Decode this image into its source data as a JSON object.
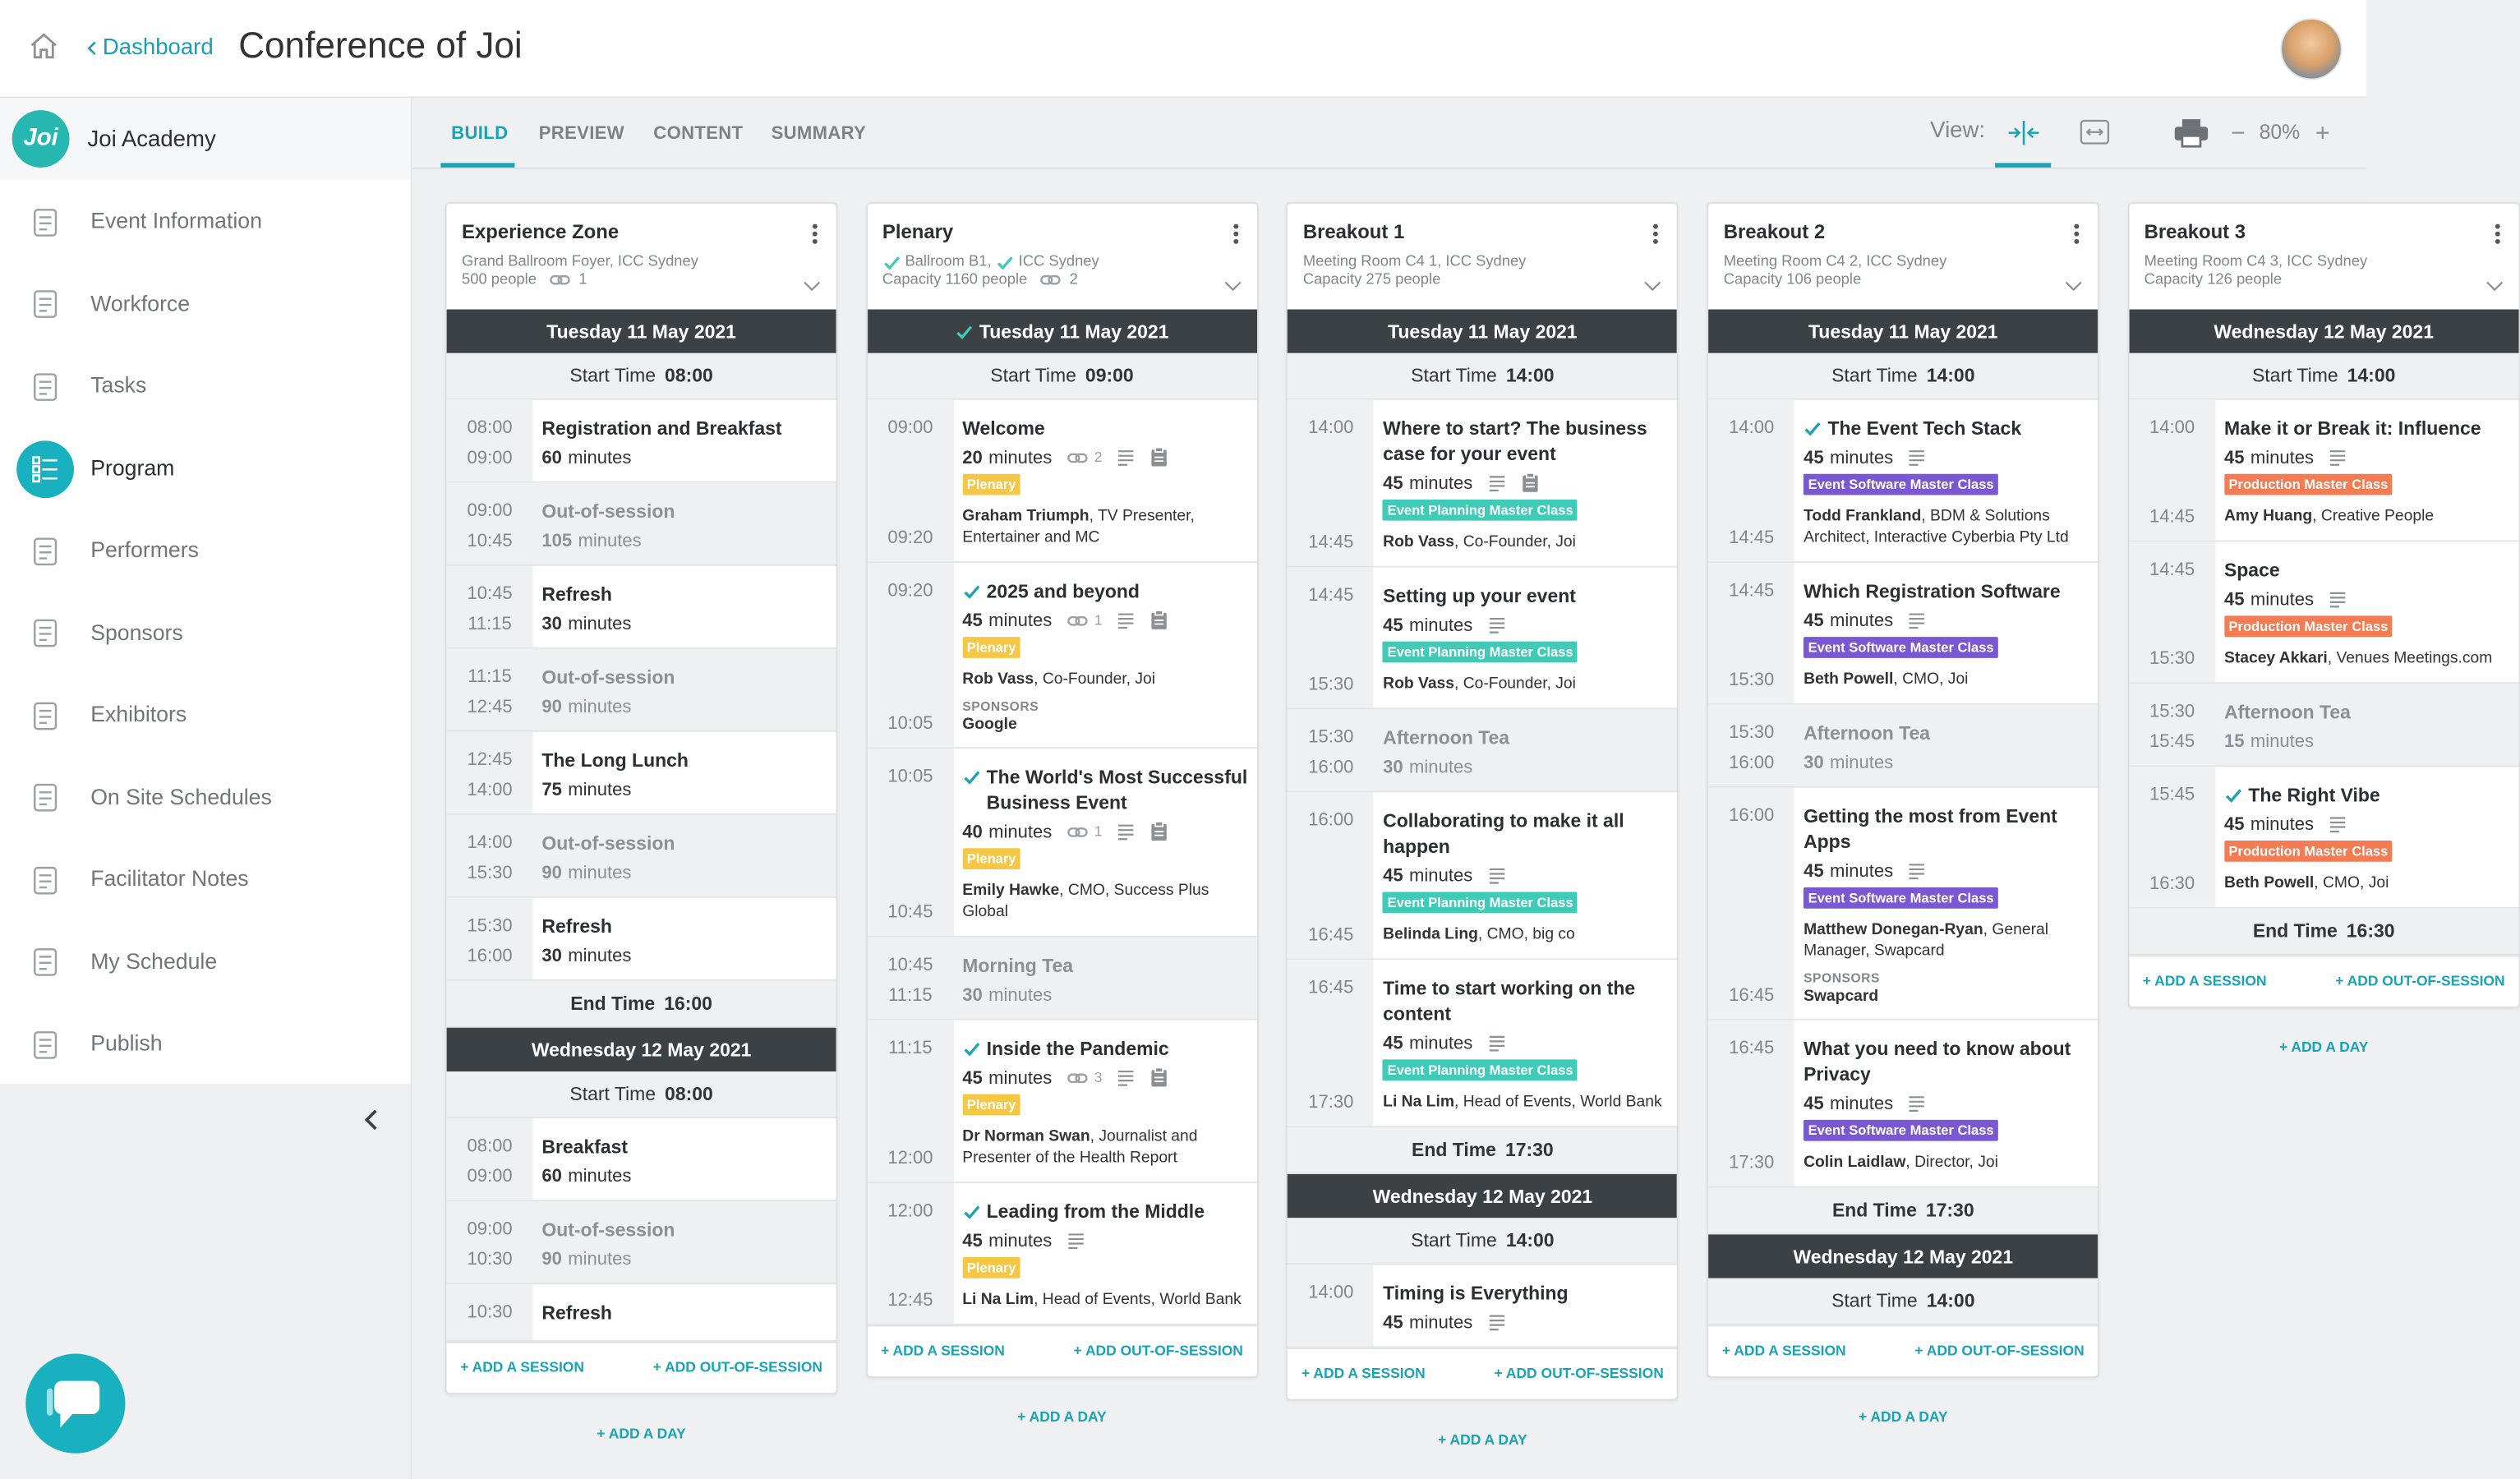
{
  "header": {
    "back": "Dashboard",
    "title": "Conference of Joi"
  },
  "sidebar": {
    "logo": "Joi",
    "org": "Joi Academy",
    "active": 3,
    "nav": [
      "Event Information",
      "Workforce",
      "Tasks",
      "Program",
      "Performers",
      "Sponsors",
      "Exhibitors",
      "On Site Schedules",
      "Facilitator Notes",
      "My Schedule",
      "Publish"
    ]
  },
  "tabs": {
    "items": [
      "BUILD",
      "PREVIEW",
      "CONTENT",
      "SUMMARY"
    ],
    "active": 0,
    "view_label": "View:",
    "zoom": "80%"
  },
  "labels": {
    "start": "Start Time",
    "end": "End Time",
    "minutes": "minutes",
    "sponsors": "SPONSORS",
    "add_session": "+ ADD A SESSION",
    "add_out": "+ ADD OUT-OF-SESSION",
    "add_day": "+ ADD A DAY"
  },
  "tags": {
    "plenary": {
      "label": "Plenary",
      "color": "#f6c744"
    },
    "epmc": {
      "label": "Event Planning Master Class",
      "color": "#3fcbb8"
    },
    "esmc": {
      "label": "Event Software Master Class",
      "color": "#7a58d4"
    },
    "pmc": {
      "label": "Production Master Class",
      "color": "#f47b52"
    }
  },
  "columns": [
    {
      "name": "Experience Zone",
      "location": [
        "Grand Ballroom Foyer, ICC Sydney"
      ],
      "location_checked": false,
      "capacity": "500 people",
      "links": 1,
      "days": [
        {
          "date": "Tuesday 11 May 2021",
          "checked": false,
          "start": "08:00",
          "end": "16:00",
          "sessions": [
            {
              "start": "08:00",
              "end": "09:00",
              "title": "Registration and Breakfast",
              "duration": 60
            },
            {
              "start": "09:00",
              "end": "10:45",
              "title": "Out-of-session",
              "duration": 105,
              "out": true
            },
            {
              "start": "10:45",
              "end": "11:15",
              "title": "Refresh",
              "duration": 30
            },
            {
              "start": "11:15",
              "end": "12:45",
              "title": "Out-of-session",
              "duration": 90,
              "out": true
            },
            {
              "start": "12:45",
              "end": "14:00",
              "title": "The Long Lunch",
              "duration": 75
            },
            {
              "start": "14:00",
              "end": "15:30",
              "title": "Out-of-session",
              "duration": 90,
              "out": true
            },
            {
              "start": "15:30",
              "end": "16:00",
              "title": "Refresh",
              "duration": 30
            }
          ]
        },
        {
          "date": "Wednesday 12 May 2021",
          "checked": false,
          "start": "08:00",
          "sessions": [
            {
              "start": "08:00",
              "end": "09:00",
              "title": "Breakfast",
              "duration": 60
            },
            {
              "start": "09:00",
              "end": "10:30",
              "title": "Out-of-session",
              "duration": 90,
              "out": true
            },
            {
              "start": "10:30",
              "title": "Refresh"
            }
          ]
        }
      ]
    },
    {
      "name": "Plenary",
      "location": [
        "Ballroom B1,",
        "ICC Sydney"
      ],
      "location_checked": true,
      "capacity": "Capacity 1160 people",
      "links": 2,
      "days": [
        {
          "date": "Tuesday 11 May 2021",
          "checked": true,
          "start": "09:00",
          "sessions": [
            {
              "start": "09:00",
              "end": "09:20",
              "title": "Welcome",
              "duration": 20,
              "links": 2,
              "notes": true,
              "clip": true,
              "tag": "plenary",
              "people": [
                {
                  "name": "Graham Triumph",
                  "role": ", TV Presenter, Entertainer and MC"
                }
              ]
            },
            {
              "start": "09:20",
              "end": "10:05",
              "title": "2025 and beyond",
              "checked": true,
              "duration": 45,
              "links": 1,
              "notes": true,
              "clip": true,
              "tag": "plenary",
              "people": [
                {
                  "name": "Rob Vass",
                  "role": ", Co-Founder, Joi"
                }
              ],
              "sponsor": "Google"
            },
            {
              "start": "10:05",
              "end": "10:45",
              "title": "The World's Most Successful Business Event",
              "checked": true,
              "duration": 40,
              "links": 1,
              "notes": true,
              "clip": true,
              "tag": "plenary",
              "people": [
                {
                  "name": "Emily Hawke",
                  "role": ", CMO, Success Plus Global"
                }
              ]
            },
            {
              "start": "10:45",
              "end": "11:15",
              "title": "Morning Tea",
              "duration": 30,
              "out": true
            },
            {
              "start": "11:15",
              "end": "12:00",
              "title": "Inside the Pandemic",
              "checked": true,
              "duration": 45,
              "links": 3,
              "notes": true,
              "clip": true,
              "tag": "plenary",
              "people": [
                {
                  "name": "Dr Norman Swan",
                  "role": ", Journalist and Presenter of the Health Report"
                }
              ]
            },
            {
              "start": "12:00",
              "end": "12:45",
              "title": "Leading from the Middle",
              "checked": true,
              "duration": 45,
              "notes": true,
              "tag": "plenary",
              "people": [
                {
                  "name": "Li Na Lim",
                  "role": ", Head of Events, World Bank"
                }
              ]
            }
          ]
        }
      ]
    },
    {
      "name": "Breakout 1",
      "location": [
        "Meeting Room C4 1, ICC Sydney"
      ],
      "location_checked": false,
      "capacity": "Capacity 275 people",
      "days": [
        {
          "date": "Tuesday 11 May 2021",
          "checked": false,
          "start": "14:00",
          "end": "17:30",
          "sessions": [
            {
              "start": "14:00",
              "end": "14:45",
              "title": "Where to start? The business case for your event",
              "duration": 45,
              "notes": true,
              "clip": true,
              "tag": "epmc",
              "people": [
                {
                  "name": "Rob Vass",
                  "role": ", Co-Founder, Joi"
                }
              ]
            },
            {
              "start": "14:45",
              "end": "15:30",
              "title": "Setting up your event",
              "duration": 45,
              "notes": true,
              "tag": "epmc",
              "people": [
                {
                  "name": "Rob Vass",
                  "role": ", Co-Founder, Joi"
                }
              ]
            },
            {
              "start": "15:30",
              "end": "16:00",
              "title": "Afternoon Tea",
              "duration": 30,
              "out": true
            },
            {
              "start": "16:00",
              "end": "16:45",
              "title": "Collaborating to make it all happen",
              "duration": 45,
              "notes": true,
              "tag": "epmc",
              "people": [
                {
                  "name": "Belinda Ling",
                  "role": ", CMO, big co"
                }
              ]
            },
            {
              "start": "16:45",
              "end": "17:30",
              "title": "Time to start working on the content",
              "duration": 45,
              "notes": true,
              "tag": "epmc",
              "people": [
                {
                  "name": "Li Na Lim",
                  "role": ", Head of Events, World Bank"
                }
              ]
            }
          ]
        },
        {
          "date": "Wednesday 12 May 2021",
          "checked": false,
          "start": "14:00",
          "sessions": [
            {
              "start": "14:00",
              "title": "Timing is Everything",
              "duration": 45,
              "notes": true
            }
          ]
        }
      ]
    },
    {
      "name": "Breakout 2",
      "location": [
        "Meeting Room C4 2, ICC Sydney"
      ],
      "location_checked": false,
      "capacity": "Capacity 106 people",
      "days": [
        {
          "date": "Tuesday 11 May 2021",
          "checked": false,
          "start": "14:00",
          "end": "17:30",
          "sessions": [
            {
              "start": "14:00",
              "end": "14:45",
              "title": "The Event Tech Stack",
              "checked": true,
              "duration": 45,
              "notes": true,
              "tag": "esmc",
              "people": [
                {
                  "name": "Todd Frankland",
                  "role": ", BDM & Solutions Architect, Interactive Cyberbia Pty Ltd"
                }
              ]
            },
            {
              "start": "14:45",
              "end": "15:30",
              "title": "Which Registration Software",
              "duration": 45,
              "notes": true,
              "tag": "esmc",
              "people": [
                {
                  "name": "Beth Powell",
                  "role": ", CMO, Joi"
                }
              ]
            },
            {
              "start": "15:30",
              "end": "16:00",
              "title": "Afternoon Tea",
              "duration": 30,
              "out": true
            },
            {
              "start": "16:00",
              "end": "16:45",
              "title": "Getting the most from Event Apps",
              "duration": 45,
              "notes": true,
              "tag": "esmc",
              "people": [
                {
                  "name": "Matthew Donegan-Ryan",
                  "role": ", General Manager, Swapcard"
                }
              ],
              "sponsor": "Swapcard"
            },
            {
              "start": "16:45",
              "end": "17:30",
              "title": "What you need to know about Privacy",
              "duration": 45,
              "notes": true,
              "tag": "esmc",
              "people": [
                {
                  "name": "Colin Laidlaw",
                  "role": ", Director, Joi"
                }
              ]
            }
          ]
        },
        {
          "date": "Wednesday 12 May 2021",
          "checked": false,
          "start": "14:00",
          "sessions": []
        }
      ]
    },
    {
      "name": "Breakout 3",
      "location": [
        "Meeting Room C4 3, ICC Sydney"
      ],
      "location_checked": false,
      "capacity": "Capacity 126 people",
      "days": [
        {
          "date": "Wednesday 12 May 2021",
          "checked": false,
          "start": "14:00",
          "end": "16:30",
          "sessions": [
            {
              "start": "14:00",
              "end": "14:45",
              "title": "Make it or Break it: Influence",
              "duration": 45,
              "notes": true,
              "tag": "pmc",
              "people": [
                {
                  "name": "Amy Huang",
                  "role": ", Creative People"
                }
              ]
            },
            {
              "start": "14:45",
              "end": "15:30",
              "title": "Space",
              "duration": 45,
              "notes": true,
              "tag": "pmc",
              "people": [
                {
                  "name": "Stacey Akkari",
                  "role": ", Venues Meetings.com"
                }
              ]
            },
            {
              "start": "15:30",
              "end": "15:45",
              "title": "Afternoon Tea",
              "duration": 15,
              "out": true
            },
            {
              "start": "15:45",
              "end": "16:30",
              "title": "The Right Vibe",
              "checked": true,
              "duration": 45,
              "notes": true,
              "tag": "pmc",
              "people": [
                {
                  "name": "Beth Powell",
                  "role": ", CMO, Joi"
                }
              ]
            }
          ]
        }
      ]
    }
  ]
}
